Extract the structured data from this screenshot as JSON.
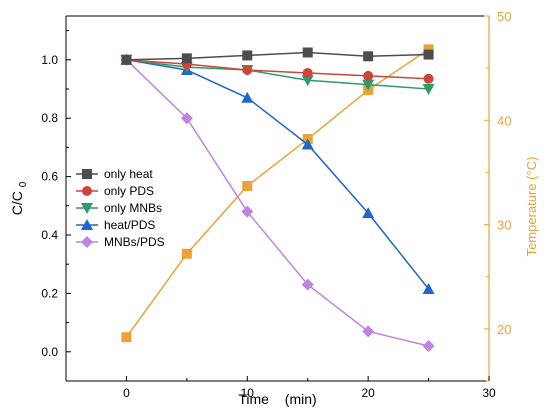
{
  "chart_data": {
    "type": "line",
    "title": "",
    "xlabel": "Time (min)",
    "xlabel_parts": [
      "Time",
      "(min)"
    ],
    "ylabel": "C/C0",
    "ylabel_main": "C/C",
    "ylabel_sub": "0",
    "y2label": "Temperature (°C)",
    "xlim": [
      -5,
      30
    ],
    "ylim": [
      -0.1,
      1.15
    ],
    "y2lim": [
      15,
      50
    ],
    "xticks": [
      "0",
      "10",
      "20",
      "30"
    ],
    "xtick_values": [
      0,
      10,
      20,
      30
    ],
    "yticks": [
      "0.0",
      "0.2",
      "0.4",
      "0.6",
      "0.8",
      "1.0"
    ],
    "ytick_values": [
      0,
      0.2,
      0.4,
      0.6,
      0.8,
      1.0
    ],
    "y2ticks": [
      "20",
      "30",
      "40",
      "50"
    ],
    "y2tick_values": [
      20,
      30,
      40,
      50
    ],
    "legend_position": "center-left",
    "x": [
      0,
      5,
      10,
      15,
      20,
      25
    ],
    "series": [
      {
        "name": "only heat",
        "color": "#4D4D4D",
        "marker": "square",
        "axis": "left",
        "values": [
          1.0,
          1.005,
          1.015,
          1.025,
          1.012,
          1.018
        ]
      },
      {
        "name": "only PDS",
        "color": "#C9473A",
        "marker": "circle",
        "axis": "left",
        "values": [
          1.0,
          0.985,
          0.965,
          0.955,
          0.945,
          0.935
        ]
      },
      {
        "name": "only MNBs",
        "color": "#2E9B6B",
        "marker": "triangle-down",
        "axis": "left",
        "values": [
          1.0,
          0.975,
          0.965,
          0.93,
          0.915,
          0.9
        ]
      },
      {
        "name": "heat/PDS",
        "color": "#2266C9",
        "marker": "triangle-up",
        "axis": "left",
        "values": [
          1.0,
          0.965,
          0.87,
          0.71,
          0.475,
          0.215
        ]
      },
      {
        "name": "MNBs/PDS",
        "color": "#C084E0",
        "marker": "diamond",
        "axis": "left",
        "values": [
          1.0,
          0.8,
          0.48,
          0.23,
          0.07,
          0.02
        ]
      },
      {
        "color": "#E8A33A",
        "marker": "square",
        "axis": "right",
        "values": [
          19.2,
          27.2,
          33.7,
          38.2,
          42.9,
          46.8
        ]
      }
    ]
  }
}
